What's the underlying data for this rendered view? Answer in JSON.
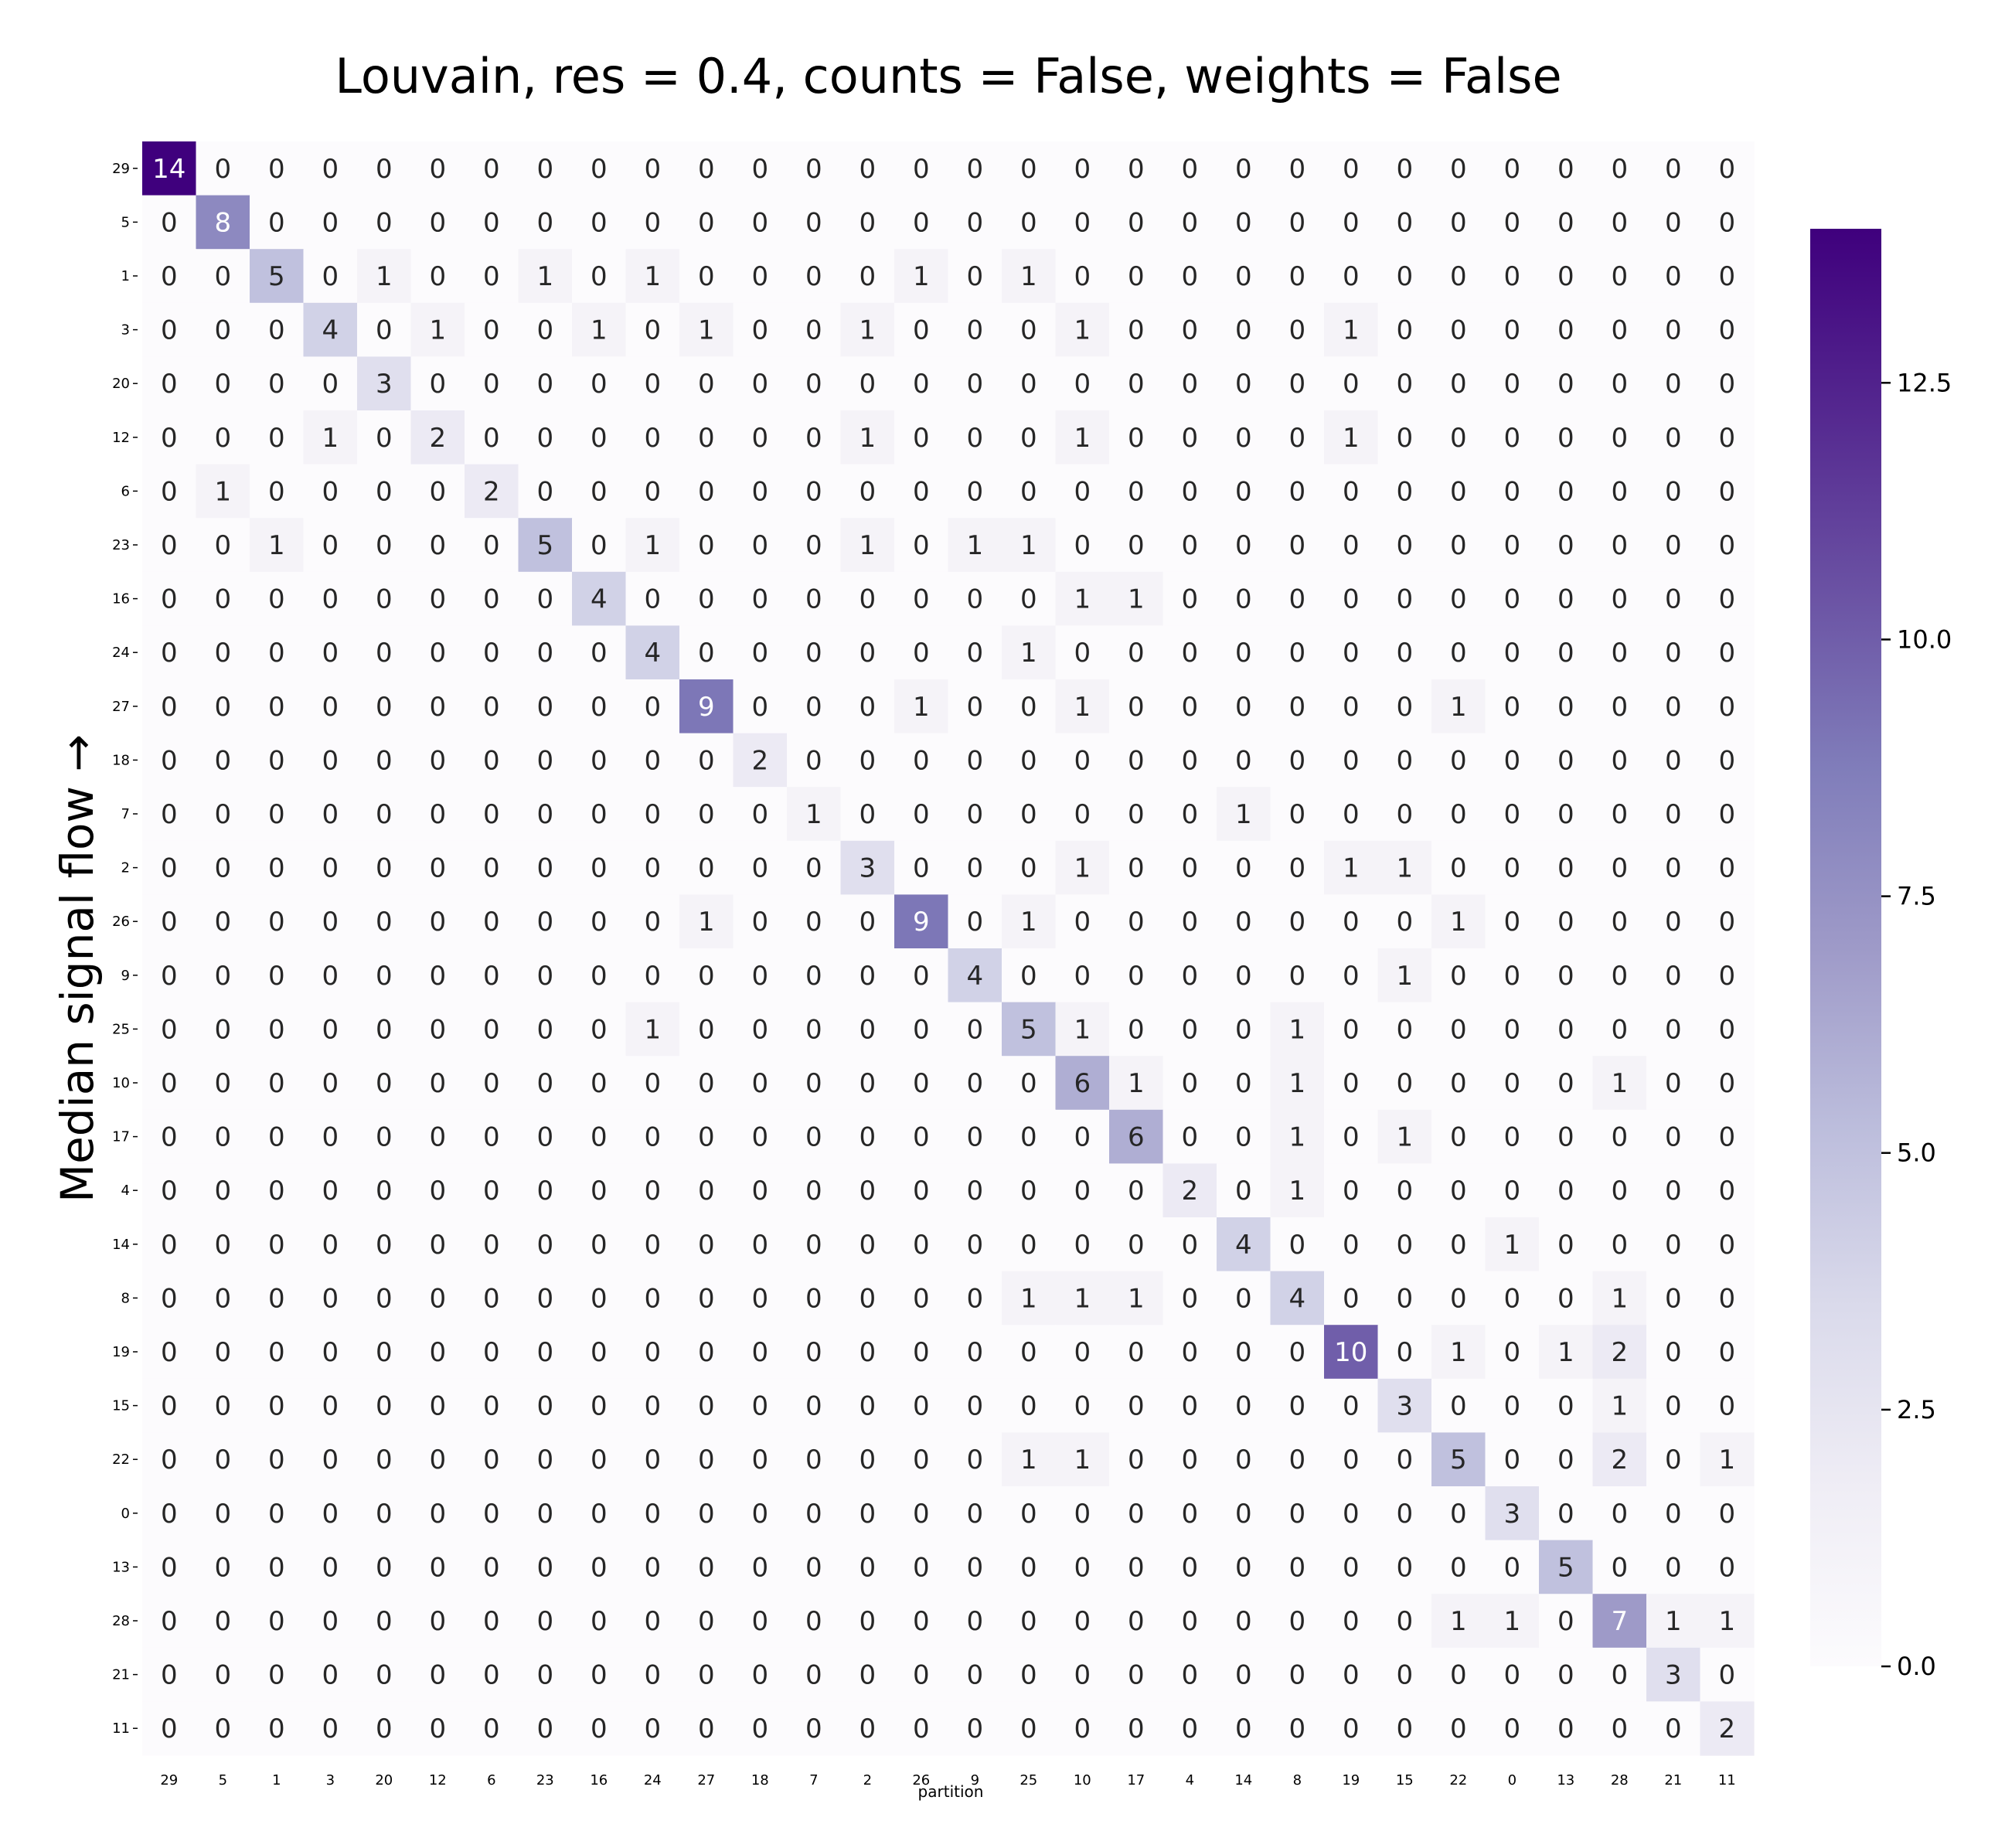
{
  "chart_data": {
    "type": "heatmap",
    "title": "Louvain, res = 0.4, counts = False, weights = False",
    "xlabel": "partition",
    "ylabel": "Median signal flow →",
    "x_categories": [
      "29",
      "5",
      "1",
      "3",
      "20",
      "12",
      "6",
      "23",
      "16",
      "24",
      "27",
      "18",
      "7",
      "2",
      "26",
      "9",
      "25",
      "10",
      "17",
      "4",
      "14",
      "8",
      "19",
      "15",
      "22",
      "0",
      "13",
      "28",
      "21",
      "11"
    ],
    "y_categories": [
      "29",
      "5",
      "1",
      "3",
      "20",
      "12",
      "6",
      "23",
      "16",
      "24",
      "27",
      "18",
      "7",
      "2",
      "26",
      "9",
      "25",
      "10",
      "17",
      "4",
      "14",
      "8",
      "19",
      "15",
      "22",
      "0",
      "13",
      "28",
      "21",
      "11"
    ],
    "values": [
      [
        14,
        0,
        0,
        0,
        0,
        0,
        0,
        0,
        0,
        0,
        0,
        0,
        0,
        0,
        0,
        0,
        0,
        0,
        0,
        0,
        0,
        0,
        0,
        0,
        0,
        0,
        0,
        0,
        0,
        0
      ],
      [
        0,
        8,
        0,
        0,
        0,
        0,
        0,
        0,
        0,
        0,
        0,
        0,
        0,
        0,
        0,
        0,
        0,
        0,
        0,
        0,
        0,
        0,
        0,
        0,
        0,
        0,
        0,
        0,
        0,
        0
      ],
      [
        0,
        0,
        5,
        0,
        1,
        0,
        0,
        1,
        0,
        1,
        0,
        0,
        0,
        0,
        1,
        0,
        1,
        0,
        0,
        0,
        0,
        0,
        0,
        0,
        0,
        0,
        0,
        0,
        0,
        0
      ],
      [
        0,
        0,
        0,
        4,
        0,
        1,
        0,
        0,
        1,
        0,
        1,
        0,
        0,
        1,
        0,
        0,
        0,
        1,
        0,
        0,
        0,
        0,
        1,
        0,
        0,
        0,
        0,
        0,
        0,
        0
      ],
      [
        0,
        0,
        0,
        0,
        3,
        0,
        0,
        0,
        0,
        0,
        0,
        0,
        0,
        0,
        0,
        0,
        0,
        0,
        0,
        0,
        0,
        0,
        0,
        0,
        0,
        0,
        0,
        0,
        0,
        0
      ],
      [
        0,
        0,
        0,
        1,
        0,
        2,
        0,
        0,
        0,
        0,
        0,
        0,
        0,
        1,
        0,
        0,
        0,
        1,
        0,
        0,
        0,
        0,
        1,
        0,
        0,
        0,
        0,
        0,
        0,
        0
      ],
      [
        0,
        1,
        0,
        0,
        0,
        0,
        2,
        0,
        0,
        0,
        0,
        0,
        0,
        0,
        0,
        0,
        0,
        0,
        0,
        0,
        0,
        0,
        0,
        0,
        0,
        0,
        0,
        0,
        0,
        0
      ],
      [
        0,
        0,
        1,
        0,
        0,
        0,
        0,
        5,
        0,
        1,
        0,
        0,
        0,
        1,
        0,
        1,
        1,
        0,
        0,
        0,
        0,
        0,
        0,
        0,
        0,
        0,
        0,
        0,
        0,
        0
      ],
      [
        0,
        0,
        0,
        0,
        0,
        0,
        0,
        0,
        4,
        0,
        0,
        0,
        0,
        0,
        0,
        0,
        0,
        1,
        1,
        0,
        0,
        0,
        0,
        0,
        0,
        0,
        0,
        0,
        0,
        0
      ],
      [
        0,
        0,
        0,
        0,
        0,
        0,
        0,
        0,
        0,
        4,
        0,
        0,
        0,
        0,
        0,
        0,
        1,
        0,
        0,
        0,
        0,
        0,
        0,
        0,
        0,
        0,
        0,
        0,
        0,
        0
      ],
      [
        0,
        0,
        0,
        0,
        0,
        0,
        0,
        0,
        0,
        0,
        9,
        0,
        0,
        0,
        1,
        0,
        0,
        1,
        0,
        0,
        0,
        0,
        0,
        0,
        1,
        0,
        0,
        0,
        0,
        0
      ],
      [
        0,
        0,
        0,
        0,
        0,
        0,
        0,
        0,
        0,
        0,
        0,
        2,
        0,
        0,
        0,
        0,
        0,
        0,
        0,
        0,
        0,
        0,
        0,
        0,
        0,
        0,
        0,
        0,
        0,
        0
      ],
      [
        0,
        0,
        0,
        0,
        0,
        0,
        0,
        0,
        0,
        0,
        0,
        0,
        1,
        0,
        0,
        0,
        0,
        0,
        0,
        0,
        1,
        0,
        0,
        0,
        0,
        0,
        0,
        0,
        0,
        0
      ],
      [
        0,
        0,
        0,
        0,
        0,
        0,
        0,
        0,
        0,
        0,
        0,
        0,
        0,
        3,
        0,
        0,
        0,
        1,
        0,
        0,
        0,
        0,
        1,
        1,
        0,
        0,
        0,
        0,
        0,
        0
      ],
      [
        0,
        0,
        0,
        0,
        0,
        0,
        0,
        0,
        0,
        0,
        1,
        0,
        0,
        0,
        9,
        0,
        1,
        0,
        0,
        0,
        0,
        0,
        0,
        0,
        1,
        0,
        0,
        0,
        0,
        0
      ],
      [
        0,
        0,
        0,
        0,
        0,
        0,
        0,
        0,
        0,
        0,
        0,
        0,
        0,
        0,
        0,
        4,
        0,
        0,
        0,
        0,
        0,
        0,
        0,
        1,
        0,
        0,
        0,
        0,
        0,
        0
      ],
      [
        0,
        0,
        0,
        0,
        0,
        0,
        0,
        0,
        0,
        1,
        0,
        0,
        0,
        0,
        0,
        0,
        5,
        1,
        0,
        0,
        0,
        1,
        0,
        0,
        0,
        0,
        0,
        0,
        0,
        0
      ],
      [
        0,
        0,
        0,
        0,
        0,
        0,
        0,
        0,
        0,
        0,
        0,
        0,
        0,
        0,
        0,
        0,
        0,
        6,
        1,
        0,
        0,
        1,
        0,
        0,
        0,
        0,
        0,
        1,
        0,
        0
      ],
      [
        0,
        0,
        0,
        0,
        0,
        0,
        0,
        0,
        0,
        0,
        0,
        0,
        0,
        0,
        0,
        0,
        0,
        0,
        6,
        0,
        0,
        1,
        0,
        1,
        0,
        0,
        0,
        0,
        0,
        0
      ],
      [
        0,
        0,
        0,
        0,
        0,
        0,
        0,
        0,
        0,
        0,
        0,
        0,
        0,
        0,
        0,
        0,
        0,
        0,
        0,
        2,
        0,
        1,
        0,
        0,
        0,
        0,
        0,
        0,
        0,
        0
      ],
      [
        0,
        0,
        0,
        0,
        0,
        0,
        0,
        0,
        0,
        0,
        0,
        0,
        0,
        0,
        0,
        0,
        0,
        0,
        0,
        0,
        4,
        0,
        0,
        0,
        0,
        1,
        0,
        0,
        0,
        0
      ],
      [
        0,
        0,
        0,
        0,
        0,
        0,
        0,
        0,
        0,
        0,
        0,
        0,
        0,
        0,
        0,
        0,
        1,
        1,
        1,
        0,
        0,
        4,
        0,
        0,
        0,
        0,
        0,
        1,
        0,
        0
      ],
      [
        0,
        0,
        0,
        0,
        0,
        0,
        0,
        0,
        0,
        0,
        0,
        0,
        0,
        0,
        0,
        0,
        0,
        0,
        0,
        0,
        0,
        0,
        10,
        0,
        1,
        0,
        1,
        2,
        0,
        0
      ],
      [
        0,
        0,
        0,
        0,
        0,
        0,
        0,
        0,
        0,
        0,
        0,
        0,
        0,
        0,
        0,
        0,
        0,
        0,
        0,
        0,
        0,
        0,
        0,
        3,
        0,
        0,
        0,
        1,
        0,
        0
      ],
      [
        0,
        0,
        0,
        0,
        0,
        0,
        0,
        0,
        0,
        0,
        0,
        0,
        0,
        0,
        0,
        0,
        1,
        1,
        0,
        0,
        0,
        0,
        0,
        0,
        5,
        0,
        0,
        2,
        0,
        1
      ],
      [
        0,
        0,
        0,
        0,
        0,
        0,
        0,
        0,
        0,
        0,
        0,
        0,
        0,
        0,
        0,
        0,
        0,
        0,
        0,
        0,
        0,
        0,
        0,
        0,
        0,
        3,
        0,
        0,
        0,
        0
      ],
      [
        0,
        0,
        0,
        0,
        0,
        0,
        0,
        0,
        0,
        0,
        0,
        0,
        0,
        0,
        0,
        0,
        0,
        0,
        0,
        0,
        0,
        0,
        0,
        0,
        0,
        0,
        5,
        0,
        0,
        0
      ],
      [
        0,
        0,
        0,
        0,
        0,
        0,
        0,
        0,
        0,
        0,
        0,
        0,
        0,
        0,
        0,
        0,
        0,
        0,
        0,
        0,
        0,
        0,
        0,
        0,
        1,
        1,
        0,
        7,
        1,
        1
      ],
      [
        0,
        0,
        0,
        0,
        0,
        0,
        0,
        0,
        0,
        0,
        0,
        0,
        0,
        0,
        0,
        0,
        0,
        0,
        0,
        0,
        0,
        0,
        0,
        0,
        0,
        0,
        0,
        0,
        3,
        0
      ],
      [
        0,
        0,
        0,
        0,
        0,
        0,
        0,
        0,
        0,
        0,
        0,
        0,
        0,
        0,
        0,
        0,
        0,
        0,
        0,
        0,
        0,
        0,
        0,
        0,
        0,
        0,
        0,
        0,
        0,
        2
      ]
    ],
    "vmin": 0,
    "vmax": 14,
    "colormap": "Purples",
    "colorbar_ticks": [
      "0.0",
      "2.5",
      "5.0",
      "7.5",
      "10.0",
      "12.5"
    ],
    "colorbar_tick_values": [
      0,
      2.5,
      5,
      7.5,
      10,
      12.5
    ],
    "colors": {
      "low": "#fcfbfd",
      "high": "#3f007d",
      "text_dark": "#262626",
      "text_light": "#ffffff"
    }
  }
}
